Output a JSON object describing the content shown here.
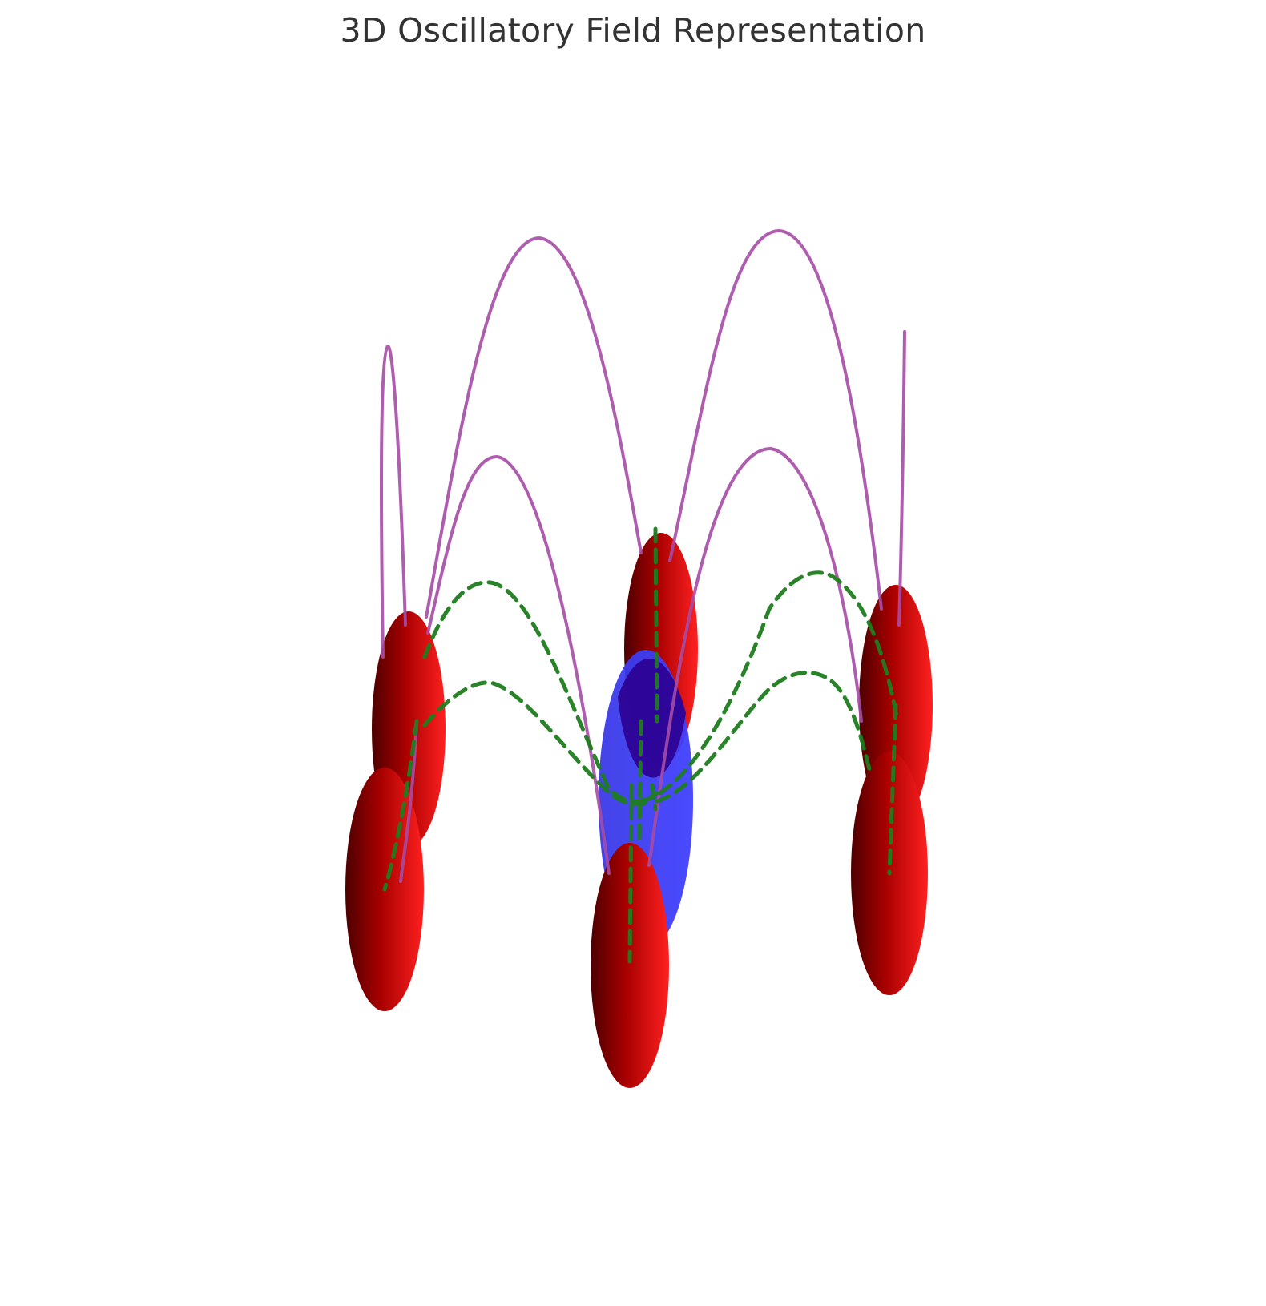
{
  "title": "3D Oscillatory Field Representation",
  "colors": {
    "red_lobe_dark": "#5a0000",
    "red_lobe_mid": "#b30000",
    "red_lobe_bright": "#ff1a1a",
    "blue_lobe": "#3333ff",
    "blue_lobe_dark": "#2a0080",
    "purple_field_line": "#a64ca6",
    "green_field_line": "#1e7d1e",
    "background": "#ffffff"
  },
  "elements": {
    "red_lobes": 6,
    "blue_lobes": 1,
    "purple_curves": "solid",
    "green_curves": "dashed"
  }
}
